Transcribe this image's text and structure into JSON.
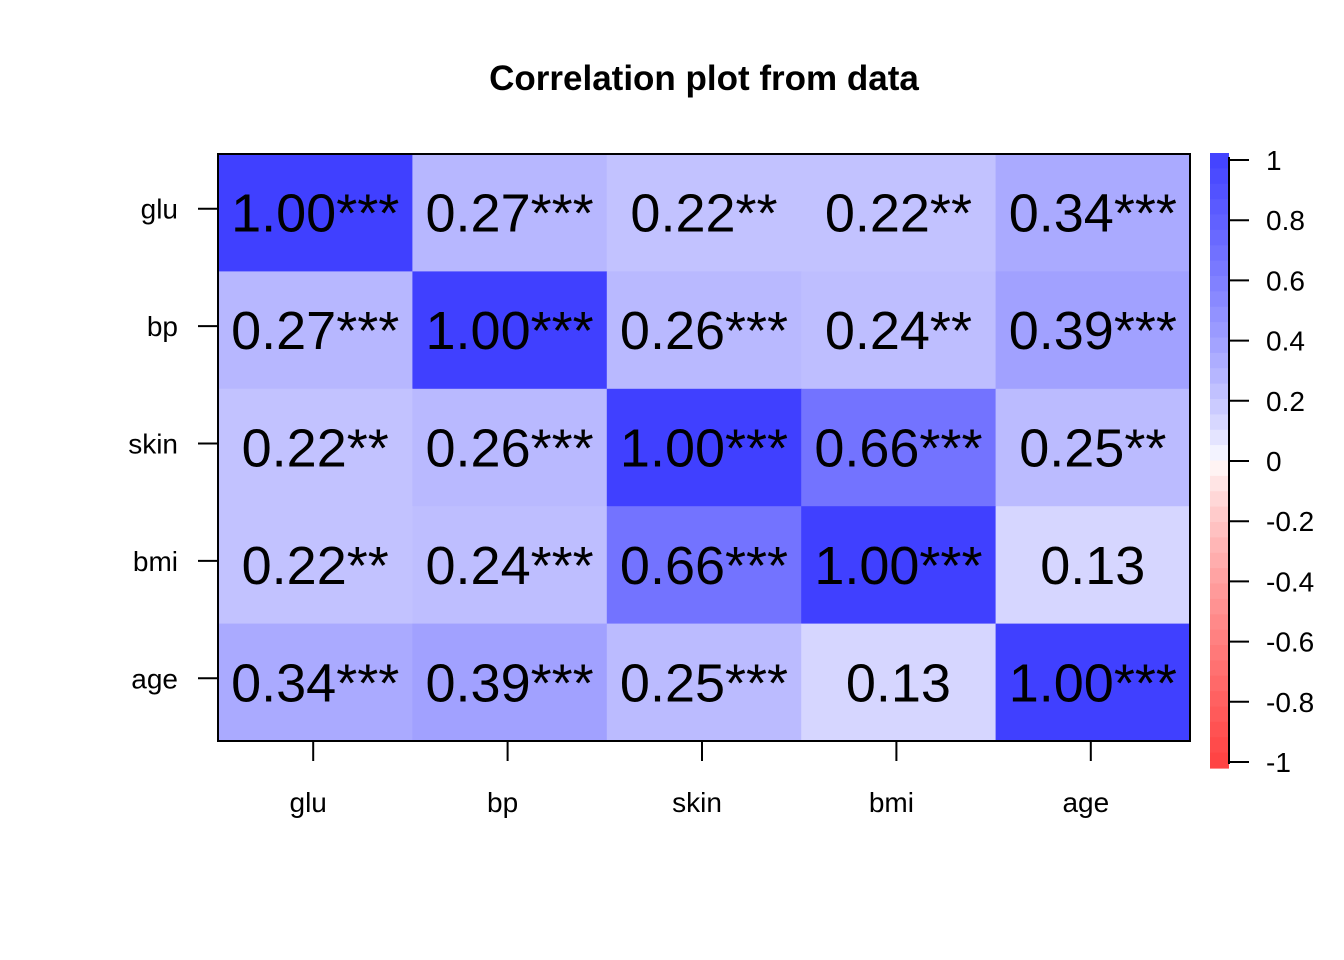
{
  "chart_data": {
    "type": "heatmap",
    "title": "Correlation plot from data",
    "row_labels": [
      "glu",
      "bp",
      "skin",
      "bmi",
      "age"
    ],
    "col_labels": [
      "glu",
      "bp",
      "skin",
      "bmi",
      "age"
    ],
    "values": [
      [
        1.0,
        0.27,
        0.22,
        0.22,
        0.34
      ],
      [
        0.27,
        1.0,
        0.26,
        0.24,
        0.39
      ],
      [
        0.22,
        0.26,
        1.0,
        0.66,
        0.25
      ],
      [
        0.22,
        0.24,
        0.66,
        1.0,
        0.13
      ],
      [
        0.34,
        0.39,
        0.25,
        0.13,
        1.0
      ]
    ],
    "cell_labels": [
      [
        "1.00***",
        "0.27***",
        "0.22**",
        "0.22**",
        "0.34***"
      ],
      [
        "0.27***",
        "1.00***",
        "0.26***",
        "0.24**",
        "0.39***"
      ],
      [
        "0.22**",
        "0.26***",
        "1.00***",
        "0.66***",
        "0.25**"
      ],
      [
        "0.22**",
        "0.24***",
        "0.66***",
        "1.00***",
        "0.13"
      ],
      [
        "0.34***",
        "0.39***",
        "0.25***",
        "0.13",
        "1.00***"
      ]
    ],
    "colorbar": {
      "range": [
        -1,
        1
      ],
      "ticks": [
        "1",
        "0.8",
        "0.6",
        "0.4",
        "0.2",
        "0",
        "-0.2",
        "-0.4",
        "-0.6",
        "-0.8",
        "-1"
      ],
      "tick_values": [
        1,
        0.8,
        0.6,
        0.4,
        0.2,
        0,
        -0.2,
        -0.4,
        -0.6,
        -0.8,
        -1
      ],
      "low_color": "#FF4040",
      "mid_color": "#FFFFFF",
      "high_color": "#4040FF"
    }
  }
}
